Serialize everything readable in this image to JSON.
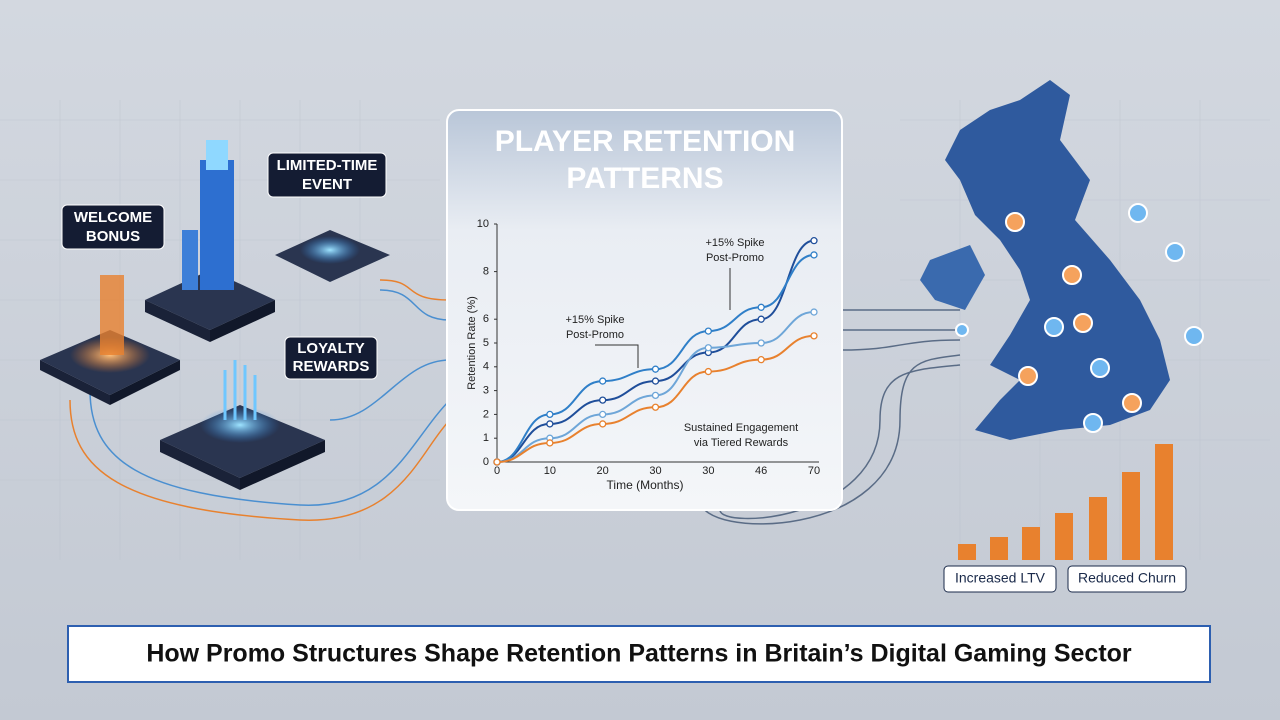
{
  "labels": {
    "welcome": [
      "WELCOME",
      "BONUS"
    ],
    "limited": [
      "LIMITED-TIME",
      "EVENT"
    ],
    "loyalty": [
      "LOYALTY",
      "REWARDS"
    ],
    "ltv": "Increased LTV",
    "churn": "Reduced Churn"
  },
  "caption": "How Promo Structures Shape Retention Patterns in Britain’s Digital Gaming Sector",
  "chart_data": {
    "type": "line",
    "title": [
      "PLAYER RETENTION",
      "PATTERNS"
    ],
    "x_label": "Time (Months)",
    "y_label": "Retention Rate (%)",
    "categories": [
      "0",
      "10",
      "20",
      "30",
      "30",
      "46",
      "70"
    ],
    "series": [
      {
        "color": "#1f4e9a",
        "values": [
          0,
          1.6,
          2.6,
          3.4,
          4.6,
          6.0,
          9.3
        ]
      },
      {
        "color": "#2f7fc8",
        "values": [
          0,
          2.0,
          3.4,
          3.9,
          5.5,
          6.5,
          8.7
        ]
      },
      {
        "color": "#6ea6d8",
        "values": [
          0,
          1.0,
          2.0,
          2.8,
          4.8,
          5.0,
          6.3
        ]
      },
      {
        "color": "#e8812e",
        "values": [
          0,
          0.8,
          1.6,
          2.3,
          3.8,
          4.3,
          5.3
        ]
      }
    ],
    "ylim": [
      0,
      10
    ],
    "yticks": [
      0,
      1,
      2,
      3,
      4,
      5,
      6,
      8,
      10
    ],
    "annotations": [
      [
        "+15% Spike",
        "Post-Promo"
      ],
      [
        "+15% Spike",
        "Post-Promo"
      ],
      [
        "Sustained Engagement",
        "via Tiered Rewards"
      ]
    ]
  }
}
